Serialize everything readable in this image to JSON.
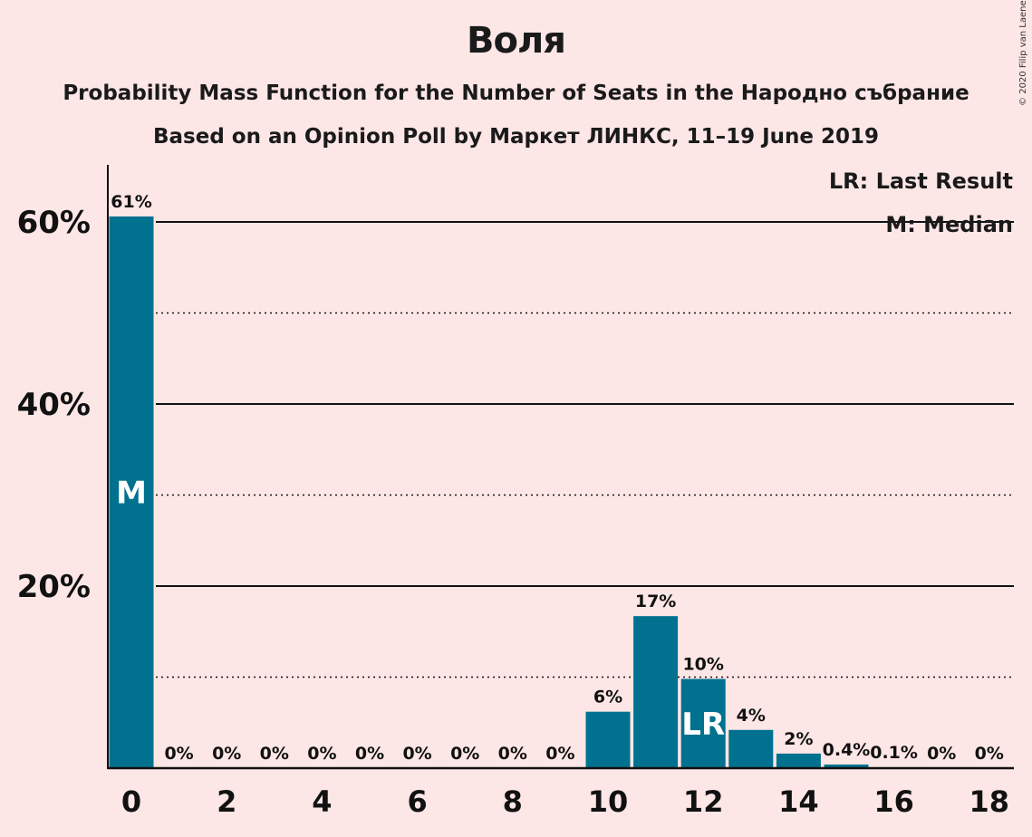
{
  "title": "Воля",
  "subtitle1": "Probability Mass Function for the Number of Seats in the Народно събрание",
  "subtitle2": "Based on an Opinion Poll by Маркет ЛИНКС, 11–19 June 2019",
  "copyright": "© 2020 Filip van Laenen",
  "legend": {
    "lr": "LR: Last Result",
    "m": "M: Median"
  },
  "colors": {
    "bar": "#00718f",
    "background": "#fde6e6",
    "grid": "#111111"
  },
  "chart_data": {
    "type": "bar",
    "categories": [
      0,
      1,
      2,
      3,
      4,
      5,
      6,
      7,
      8,
      9,
      10,
      11,
      12,
      13,
      14,
      15,
      16,
      17,
      18
    ],
    "values": [
      60.6,
      0,
      0,
      0,
      0,
      0,
      0,
      0,
      0,
      0,
      6.2,
      16.7,
      9.8,
      4.2,
      1.6,
      0.4,
      0.1,
      0,
      0
    ],
    "value_labels": [
      "61%",
      "0%",
      "0%",
      "0%",
      "0%",
      "0%",
      "0%",
      "0%",
      "0%",
      "0%",
      "6%",
      "17%",
      "10%",
      "4%",
      "2%",
      "0.4%",
      "0.1%",
      "0%",
      "0%"
    ],
    "x_tick_labels": [
      "0",
      "2",
      "4",
      "6",
      "8",
      "10",
      "12",
      "14",
      "16",
      "18"
    ],
    "x_ticks": [
      0,
      2,
      4,
      6,
      8,
      10,
      12,
      14,
      16,
      18
    ],
    "y_tick_labels": [
      "20%",
      "40%",
      "60%"
    ],
    "y_ticks": [
      20,
      40,
      60
    ],
    "y_solid_grid": [
      20,
      40,
      60
    ],
    "y_dotted_grid": [
      10,
      30,
      50
    ],
    "ylim": [
      0,
      66
    ],
    "median": {
      "seat": 0,
      "label": "M"
    },
    "last_result": {
      "seat": 12,
      "label": "LR"
    },
    "legend_position": "top-right"
  }
}
